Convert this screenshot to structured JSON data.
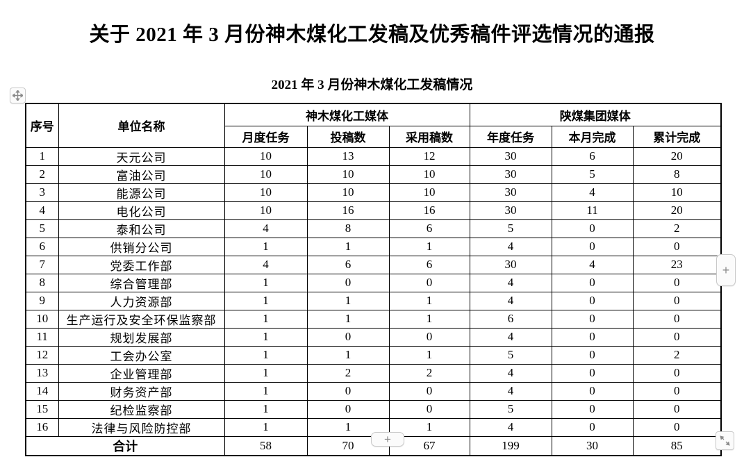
{
  "page": {
    "title": "关于 2021 年 3 月份神木煤化工发稿及优秀稿件评选情况的通报",
    "subtitle": "2021 年 3 月份神木煤化工发稿情况"
  },
  "table": {
    "header": {
      "col_index": "序号",
      "col_unit": "单位名称",
      "group_shenmu": "神木煤化工媒体",
      "group_shaanmei": "陕煤集团媒体",
      "sub_columns": [
        "月度任务",
        "投稿数",
        "采用稿数",
        "年度任务",
        "本月完成",
        "累计完成"
      ]
    },
    "rows": [
      {
        "index": "1",
        "unit": "天元公司",
        "values": [
          10,
          13,
          12,
          30,
          6,
          20
        ]
      },
      {
        "index": "2",
        "unit": "富油公司",
        "values": [
          10,
          10,
          10,
          30,
          5,
          8
        ]
      },
      {
        "index": "3",
        "unit": "能源公司",
        "values": [
          10,
          10,
          10,
          30,
          4,
          10
        ]
      },
      {
        "index": "4",
        "unit": "电化公司",
        "values": [
          10,
          16,
          16,
          30,
          11,
          20
        ]
      },
      {
        "index": "5",
        "unit": "泰和公司",
        "values": [
          4,
          8,
          6,
          5,
          0,
          2
        ]
      },
      {
        "index": "6",
        "unit": "供销分公司",
        "values": [
          1,
          1,
          1,
          4,
          0,
          0
        ]
      },
      {
        "index": "7",
        "unit": "党委工作部",
        "values": [
          4,
          6,
          6,
          30,
          4,
          23
        ]
      },
      {
        "index": "8",
        "unit": "综合管理部",
        "values": [
          1,
          0,
          0,
          4,
          0,
          0
        ]
      },
      {
        "index": "9",
        "unit": "人力资源部",
        "values": [
          1,
          1,
          1,
          4,
          0,
          0
        ]
      },
      {
        "index": "10",
        "unit": "生产运行及安全环保监察部",
        "values": [
          1,
          1,
          1,
          6,
          0,
          0
        ]
      },
      {
        "index": "11",
        "unit": "规划发展部",
        "values": [
          1,
          0,
          0,
          4,
          0,
          0
        ]
      },
      {
        "index": "12",
        "unit": "工会办公室",
        "values": [
          1,
          1,
          1,
          5,
          0,
          2
        ]
      },
      {
        "index": "13",
        "unit": "企业管理部",
        "values": [
          1,
          2,
          2,
          4,
          0,
          0
        ]
      },
      {
        "index": "14",
        "unit": "财务资产部",
        "values": [
          1,
          0,
          0,
          4,
          0,
          0
        ]
      },
      {
        "index": "15",
        "unit": "纪检监察部",
        "values": [
          1,
          0,
          0,
          5,
          0,
          0
        ]
      },
      {
        "index": "16",
        "unit": "法律与风险防控部",
        "values": [
          1,
          1,
          1,
          4,
          0,
          0
        ]
      }
    ],
    "total": {
      "label": "合计",
      "values": [
        58,
        70,
        67,
        199,
        30,
        85
      ]
    }
  },
  "controls": {
    "move_handle_icon": "move-cross",
    "insert_column_label": "+",
    "insert_row_label": "+",
    "resize_handle_icon": "diagonal-resize-arrows"
  },
  "colors": {
    "text": "#000000",
    "table_border": "#000000",
    "control_border": "#c9c9c9",
    "control_glyph": "#8a8a8a",
    "page_background": "#ffffff"
  }
}
